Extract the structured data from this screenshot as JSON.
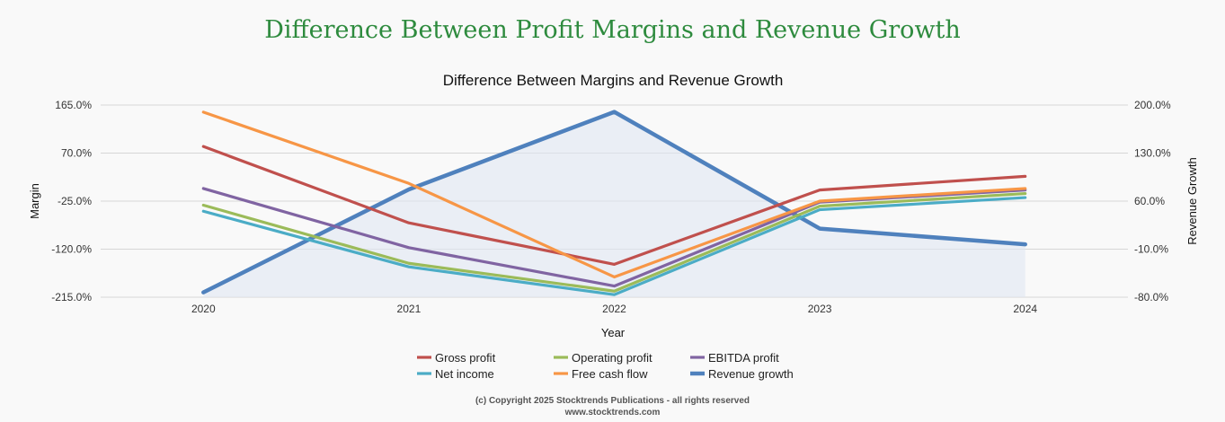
{
  "page_title": "Difference Between Profit Margins and Revenue Growth",
  "copyright": {
    "line1": "(c) Copyright 2025 Stocktrends Publications - all rights reserved",
    "line2": "www.stocktrends.com"
  },
  "chart_data": {
    "type": "line",
    "title": "Difference Between Margins and Revenue Growth",
    "xlabel": "Year",
    "ylabel": "Margin",
    "y2label": "Revenue Growth",
    "categories": [
      "2020",
      "2021",
      "2022",
      "2023",
      "2024"
    ],
    "ylim": [
      -215,
      165
    ],
    "y2lim": [
      -80,
      200
    ],
    "y_ticks": [
      "165.0%",
      "70.0%",
      "-25.0%",
      "-120.0%",
      "-215.0%"
    ],
    "y2_ticks": [
      "200.0%",
      "130.0%",
      "60.0%",
      "-10.0%",
      "-80.0%"
    ],
    "legend_position": "bottom",
    "series": [
      {
        "name": "Gross profit",
        "axis": "left",
        "color": "#c0504d",
        "values": [
          83,
          -68,
          -150,
          -3,
          24
        ]
      },
      {
        "name": "Operating profit",
        "axis": "left",
        "color": "#9bbb59",
        "values": [
          -33,
          -148,
          -203,
          -35,
          -10
        ]
      },
      {
        "name": "EBITDA profit",
        "axis": "left",
        "color": "#8064a2",
        "values": [
          0,
          -117,
          -193,
          -27,
          -3
        ]
      },
      {
        "name": "Net income",
        "axis": "left",
        "color": "#4bacc6",
        "values": [
          -45,
          -155,
          -210,
          -42,
          -18
        ]
      },
      {
        "name": "Free cash flow",
        "axis": "left",
        "color": "#f79646",
        "values": [
          151,
          10,
          -175,
          -25,
          0
        ]
      },
      {
        "name": "Revenue growth",
        "axis": "right",
        "color": "#4f81bd",
        "area": true,
        "values": [
          -73,
          77,
          190,
          20,
          -3
        ]
      }
    ]
  }
}
